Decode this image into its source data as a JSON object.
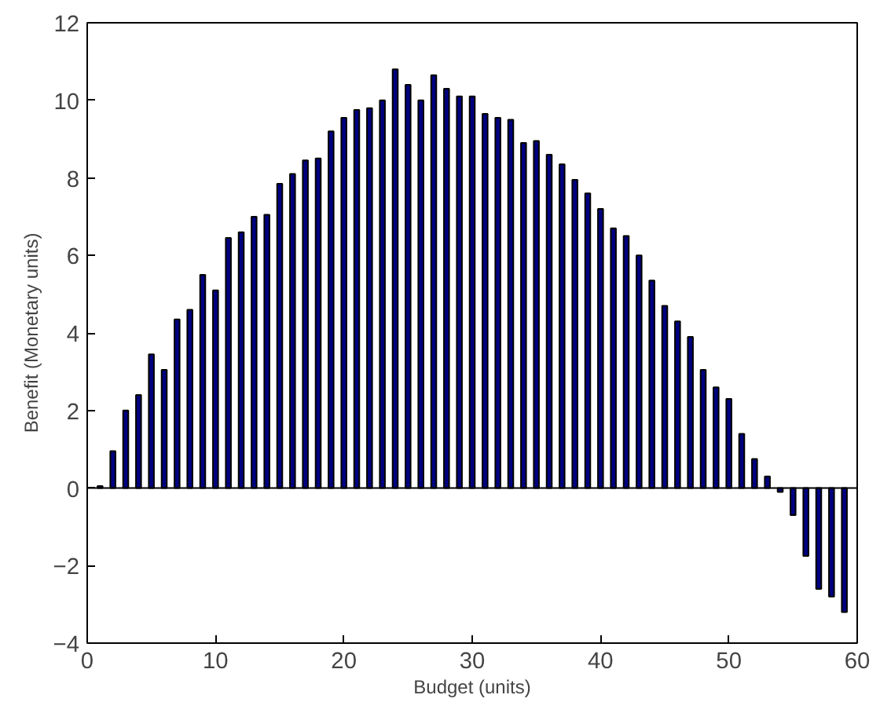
{
  "chart_data": {
    "type": "bar",
    "xlabel": "Budget (units)",
    "ylabel": "Benefit (Monetary units)",
    "x": [
      1,
      2,
      3,
      4,
      5,
      6,
      7,
      8,
      9,
      10,
      11,
      12,
      13,
      14,
      15,
      16,
      17,
      18,
      19,
      20,
      21,
      22,
      23,
      24,
      25,
      26,
      27,
      28,
      29,
      30,
      31,
      32,
      33,
      34,
      35,
      36,
      37,
      38,
      39,
      40,
      41,
      42,
      43,
      44,
      45,
      46,
      47,
      48,
      49,
      50,
      51,
      52,
      53,
      54,
      55,
      56,
      57,
      58,
      59
    ],
    "values": [
      0.05,
      0.95,
      2.0,
      2.4,
      3.45,
      3.05,
      4.35,
      4.6,
      5.5,
      5.1,
      6.45,
      6.6,
      7.0,
      7.05,
      7.85,
      8.1,
      8.45,
      8.5,
      9.2,
      9.55,
      9.75,
      9.8,
      10.0,
      10.8,
      10.4,
      10.0,
      10.65,
      10.3,
      10.1,
      10.1,
      9.65,
      9.55,
      9.5,
      8.9,
      8.95,
      8.6,
      8.35,
      7.95,
      7.6,
      7.2,
      6.7,
      6.5,
      6.0,
      5.35,
      4.7,
      4.3,
      3.9,
      3.05,
      2.6,
      2.3,
      1.4,
      0.75,
      0.3,
      -0.1,
      -0.7,
      -1.75,
      -2.6,
      -2.8,
      -3.2
    ],
    "color": "#000080",
    "xlim": [
      0,
      60
    ],
    "xticks": [
      0,
      10,
      20,
      30,
      40,
      50,
      60
    ],
    "ylim": [
      -4,
      12
    ],
    "yticks": [
      -4,
      -2,
      0,
      2,
      4,
      6,
      8,
      10,
      12
    ],
    "ref_lines": [
      {
        "axis": "y",
        "value": 0,
        "color": "#000000",
        "line_style": "solid"
      }
    ],
    "grid": false
  }
}
